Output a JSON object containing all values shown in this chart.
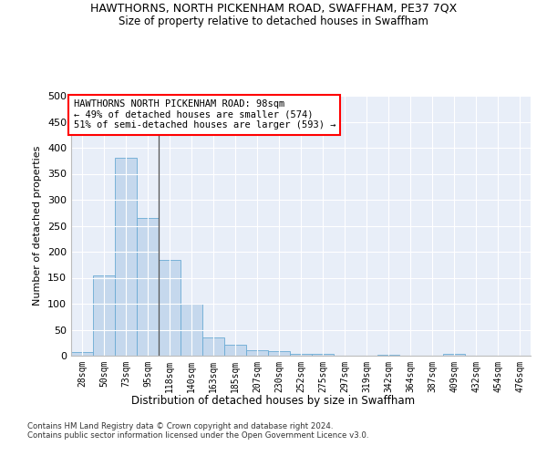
{
  "title": "HAWTHORNS, NORTH PICKENHAM ROAD, SWAFFHAM, PE37 7QX",
  "subtitle": "Size of property relative to detached houses in Swaffham",
  "xlabel": "Distribution of detached houses by size in Swaffham",
  "ylabel": "Number of detached properties",
  "bar_color": "#c5d8ed",
  "bar_edge_color": "#6aaad4",
  "background_color": "#e8eef8",
  "grid_color": "#ffffff",
  "categories": [
    "28sqm",
    "50sqm",
    "73sqm",
    "95sqm",
    "118sqm",
    "140sqm",
    "163sqm",
    "185sqm",
    "207sqm",
    "230sqm",
    "252sqm",
    "275sqm",
    "297sqm",
    "319sqm",
    "342sqm",
    "364sqm",
    "387sqm",
    "409sqm",
    "432sqm",
    "454sqm",
    "476sqm"
  ],
  "values": [
    7,
    155,
    380,
    265,
    184,
    100,
    35,
    21,
    10,
    9,
    4,
    3,
    0,
    0,
    2,
    0,
    0,
    3,
    0,
    0,
    0
  ],
  "ylim": [
    0,
    500
  ],
  "yticks": [
    0,
    50,
    100,
    150,
    200,
    250,
    300,
    350,
    400,
    450,
    500
  ],
  "annotation_text": "HAWTHORNS NORTH PICKENHAM ROAD: 98sqm\n← 49% of detached houses are smaller (574)\n51% of semi-detached houses are larger (593) →",
  "vline_x_index": 3,
  "footnote1": "Contains HM Land Registry data © Crown copyright and database right 2024.",
  "footnote2": "Contains public sector information licensed under the Open Government Licence v3.0."
}
